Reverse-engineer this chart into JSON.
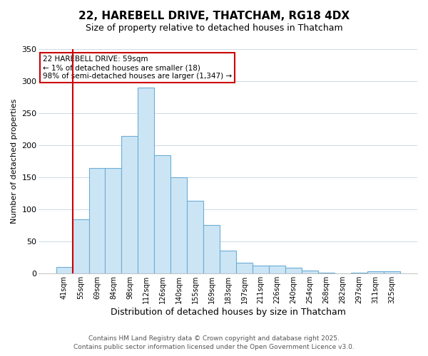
{
  "title_line1": "22, HAREBELL DRIVE, THATCHAM, RG18 4DX",
  "title_line2": "Size of property relative to detached houses in Thatcham",
  "xlabel": "Distribution of detached houses by size in Thatcham",
  "ylabel": "Number of detached properties",
  "bar_labels": [
    "41sqm",
    "55sqm",
    "69sqm",
    "84sqm",
    "98sqm",
    "112sqm",
    "126sqm",
    "140sqm",
    "155sqm",
    "169sqm",
    "183sqm",
    "197sqm",
    "211sqm",
    "226sqm",
    "240sqm",
    "254sqm",
    "268sqm",
    "282sqm",
    "297sqm",
    "311sqm",
    "325sqm"
  ],
  "bar_values": [
    10,
    85,
    165,
    165,
    215,
    290,
    185,
    150,
    113,
    76,
    36,
    17,
    13,
    12,
    9,
    5,
    1,
    0,
    1,
    4,
    4
  ],
  "bar_color": "#cce5f5",
  "bar_edge_color": "#6baed6",
  "annotation_title": "22 HAREBELL DRIVE: 59sqm",
  "annotation_line2": "← 1% of detached houses are smaller (18)",
  "annotation_line3": "98% of semi-detached houses are larger (1,347) →",
  "vline_x_index": 1,
  "vline_color": "#cc0000",
  "ylim": [
    0,
    350
  ],
  "yticks": [
    0,
    50,
    100,
    150,
    200,
    250,
    300,
    350
  ],
  "footnote1": "Contains HM Land Registry data © Crown copyright and database right 2025.",
  "footnote2": "Contains public sector information licensed under the Open Government Licence v3.0.",
  "bg_color": "#ffffff",
  "plot_bg_color": "#ffffff",
  "grid_color": "#d0dce8",
  "annotation_box_color": "#ffffff",
  "annotation_box_edge": "#cc0000",
  "title_fontsize": 11,
  "subtitle_fontsize": 9,
  "xlabel_fontsize": 9,
  "ylabel_fontsize": 8,
  "tick_fontsize": 7,
  "annot_fontsize": 7.5,
  "footnote_fontsize": 6.5
}
